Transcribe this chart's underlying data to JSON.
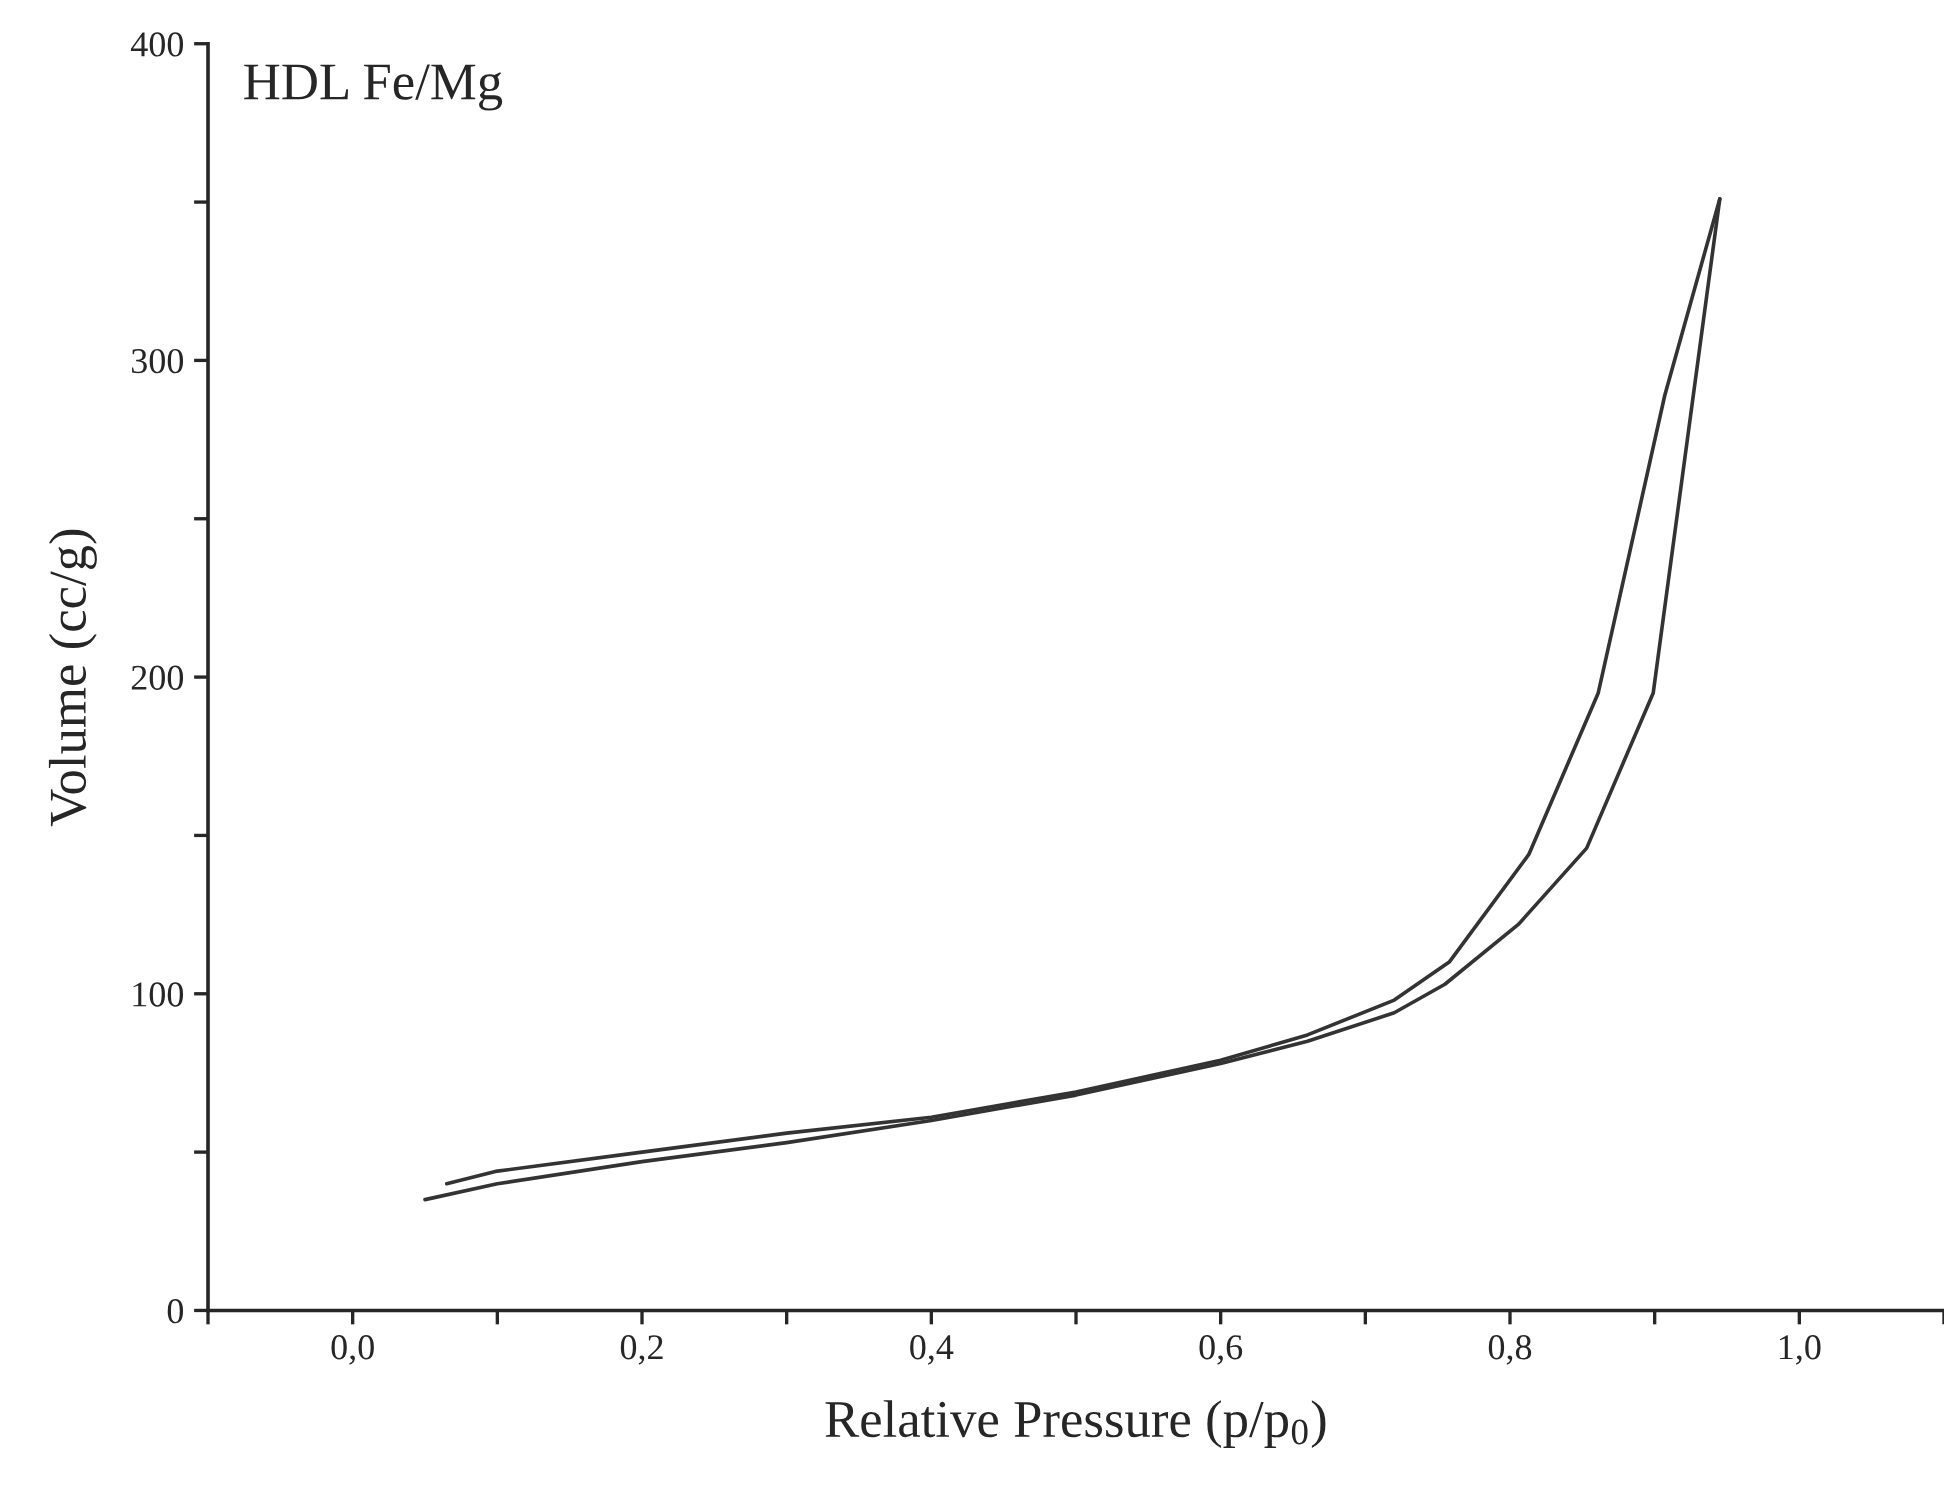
{
  "chart_data": {
    "type": "line",
    "title": "HDL Fe/Mg",
    "xlabel": "Relative Pressure (p/p$_{0}$)",
    "ylabel": "Volume (cc/g)",
    "xlim": [
      -0.1,
      1.1
    ],
    "ylim": [
      0,
      400
    ],
    "xticks": [
      {
        "value": -0.1,
        "label": null
      },
      {
        "value": 0,
        "label": "0,0"
      },
      {
        "value": 0.1,
        "label": null
      },
      {
        "value": 0.2,
        "label": "0,2"
      },
      {
        "value": 0.3,
        "label": null
      },
      {
        "value": 0.4,
        "label": "0,4"
      },
      {
        "value": 0.5,
        "label": null
      },
      {
        "value": 0.6,
        "label": "0,6"
      },
      {
        "value": 0.7,
        "label": null
      },
      {
        "value": 0.8,
        "label": "0,8"
      },
      {
        "value": 0.9,
        "label": null
      },
      {
        "value": 1.0,
        "label": "1,0"
      },
      {
        "value": 1.1,
        "label": null
      }
    ],
    "yticks": [
      0,
      {
        "value": 50,
        "label": null
      },
      100,
      {
        "value": 150,
        "label": null
      },
      200,
      {
        "value": 250,
        "label": null
      },
      300,
      {
        "value": 350,
        "label": null
      },
      400
    ],
    "grid": false,
    "marker": "none",
    "line_style": "solid",
    "series": [
      {
        "color": "#333333",
        "x": [
          0.05,
          0.1,
          0.2,
          0.3,
          0.4,
          0.5,
          0.6,
          0.66,
          0.72,
          0.755,
          0.806,
          0.853,
          0.899,
          0.945
        ],
        "values": [
          35,
          40,
          47,
          53,
          60,
          68,
          78,
          85,
          94,
          103,
          122,
          146,
          195,
          351
        ]
      },
      {
        "color": "#333333",
        "x": [
          0.945,
          0.907,
          0.861,
          0.813,
          0.758,
          0.72,
          0.66,
          0.6,
          0.5,
          0.4,
          0.3,
          0.2,
          0.1,
          0.065
        ],
        "values": [
          351,
          289,
          195,
          144,
          110,
          98,
          87,
          79,
          69,
          61,
          56,
          50,
          44,
          40
        ]
      }
    ]
  }
}
